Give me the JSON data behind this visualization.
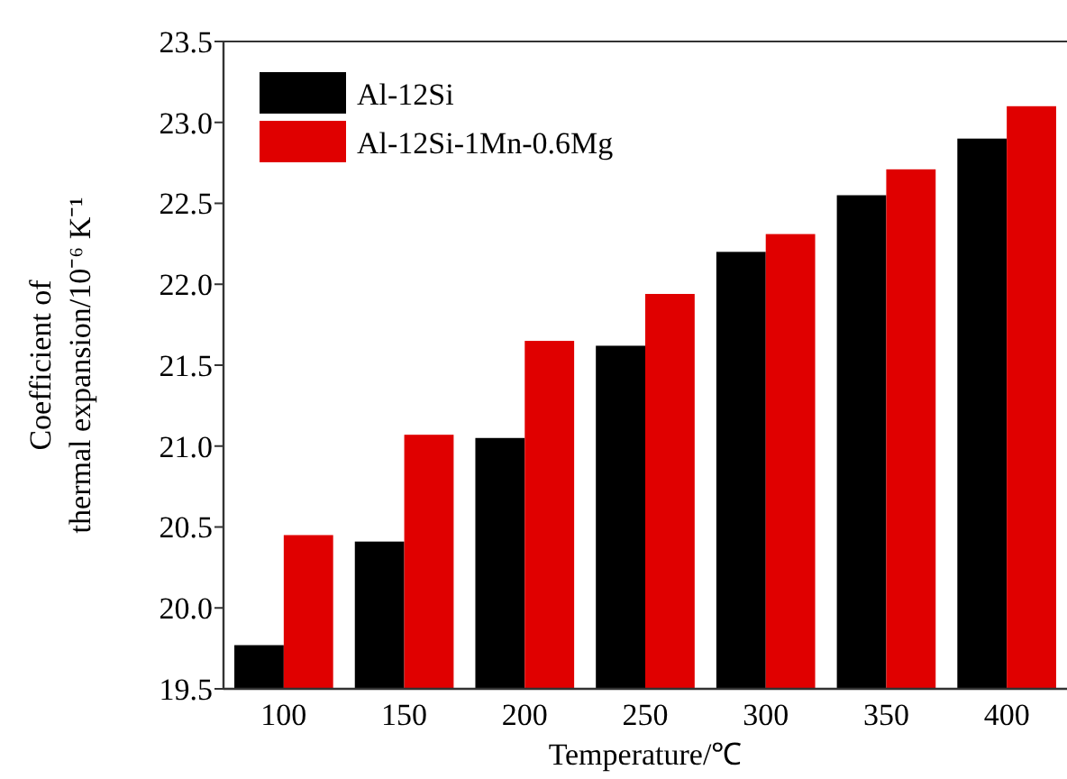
{
  "chart_data": {
    "type": "bar",
    "xlabel": "Temperature/℃",
    "ylabel": "Coefficient of\nthermal expansion/10⁻⁶ K⁻¹",
    "categories": [
      "100",
      "150",
      "200",
      "250",
      "300",
      "350",
      "400"
    ],
    "series": [
      {
        "name": "Al-12Si",
        "color": "#000000",
        "values": [
          19.77,
          20.41,
          21.05,
          21.62,
          22.2,
          22.55,
          22.9
        ]
      },
      {
        "name": "Al-12Si-1Mn-0.6Mg",
        "color": "#e00000",
        "values": [
          20.45,
          21.07,
          21.65,
          21.94,
          22.31,
          22.71,
          23.1
        ]
      }
    ],
    "ylim": [
      19.5,
      23.5
    ],
    "yticks": [
      19.5,
      {
        "value": 20,
        "label": "20.0"
      },
      20.5,
      {
        "value": 21,
        "label": "21.0"
      },
      21.5,
      {
        "value": 22,
        "label": "22.0"
      },
      22.5,
      {
        "value": 23,
        "label": "23.0"
      },
      23.5
    ],
    "grid": false,
    "legend": "top left"
  }
}
